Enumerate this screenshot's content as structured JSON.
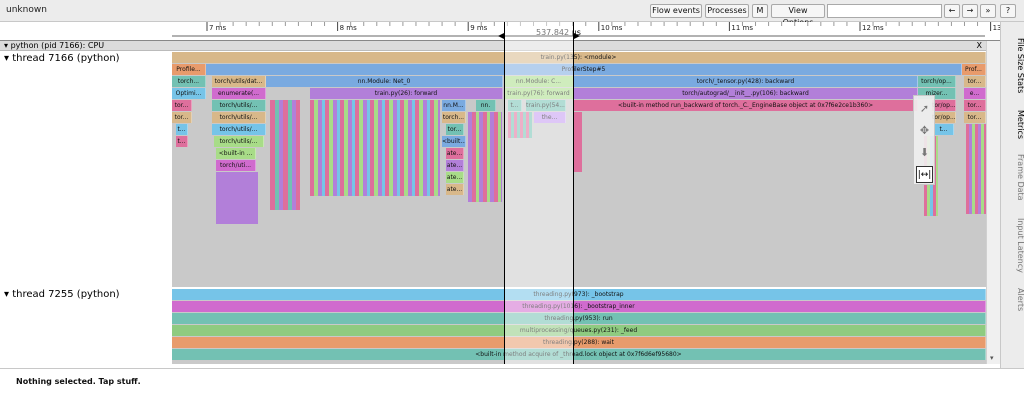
{
  "window": {
    "title": "unknown"
  },
  "toolbar": {
    "flow_events": "Flow events",
    "processes": "Processes",
    "m": "M",
    "view_options": "View Options",
    "search_placeholder": "",
    "prev": "←",
    "next": "→",
    "more": "»",
    "help": "?"
  },
  "ruler": {
    "ticks": [
      "7 ms",
      "8 ms",
      "9 ms",
      "10 ms",
      "11 ms",
      "12 ms",
      "13"
    ],
    "selection_duration": "537.842 µs"
  },
  "sidebar": {
    "tabs": [
      "File Size Stats",
      "Metrics",
      "Frame Data",
      "Input Latency",
      "Alerts"
    ]
  },
  "process": {
    "header": "python (pid 7166): CPU",
    "close": "X",
    "threads": [
      {
        "label": "thread 7166 (python)"
      },
      {
        "label": "thread 7255 (python)"
      }
    ]
  },
  "slices": {
    "module": "train.py(135): <module>",
    "profiler": "Profile...",
    "profiler2": "Prof...",
    "step": "ProfilerStep#5",
    "torch1": "torch...",
    "dataload": "torch/utils/dat...",
    "net0": "nn.Module: Net_0",
    "netc": "nn.Module: C...",
    "backward": "torch/_tensor.py(428): backward",
    "torchop": "torch/op...",
    "tor": "tor...",
    "optim": "Optimi...",
    "enumerate": "enumerate(...",
    "forward26": "train.py(26): forward",
    "forward76": "train.py(76): forward",
    "autograd": "torch/autograd/__init__.py(106): backward",
    "mizer": "mizer...",
    "e_dots": "e...",
    "torutils": "torch/utils/...",
    "nnm": "nn.M...",
    "nn": "nn.",
    "t": "t...",
    "train54": "train.py(54...",
    "runbackward": "<built-in method run_backward of torch._C._EngineBase object at 0x7f6e2ce1b360>",
    "torvop": "tor/op...",
    "torch2": "torch...",
    "the": "the...",
    "built1": "<built...",
    "builtin": "<built-in ...",
    "torchuti": "torch/uti...",
    "ate": "ate...",
    "bootstrap": "threading.py(973): _bootstrap",
    "bootstrap_inner": "threading.py(1016): _bootstrap_inner",
    "run": "threading.py(953): run",
    "feed": "multiprocessing/queues.py(231): _feed",
    "wait": "threading.py(288): wait",
    "acquire": "<built-in method acquire of _thread.lock object at 0x7f6d6ef95680>"
  },
  "colors": {
    "sand": "#d8b88a",
    "blue": "#7aaae0",
    "green": "#8fcb80",
    "teal": "#73c1b3",
    "purple": "#b27fd9",
    "pink": "#de6f9c",
    "magenta": "#d06bce",
    "orange": "#e89b6c",
    "sky": "#76c4e8",
    "lime": "#a8dc88",
    "violet": "#c39af0",
    "grey_bg": "#c9c9c9"
  },
  "status": {
    "text": "Nothing selected. Tap stuff."
  }
}
